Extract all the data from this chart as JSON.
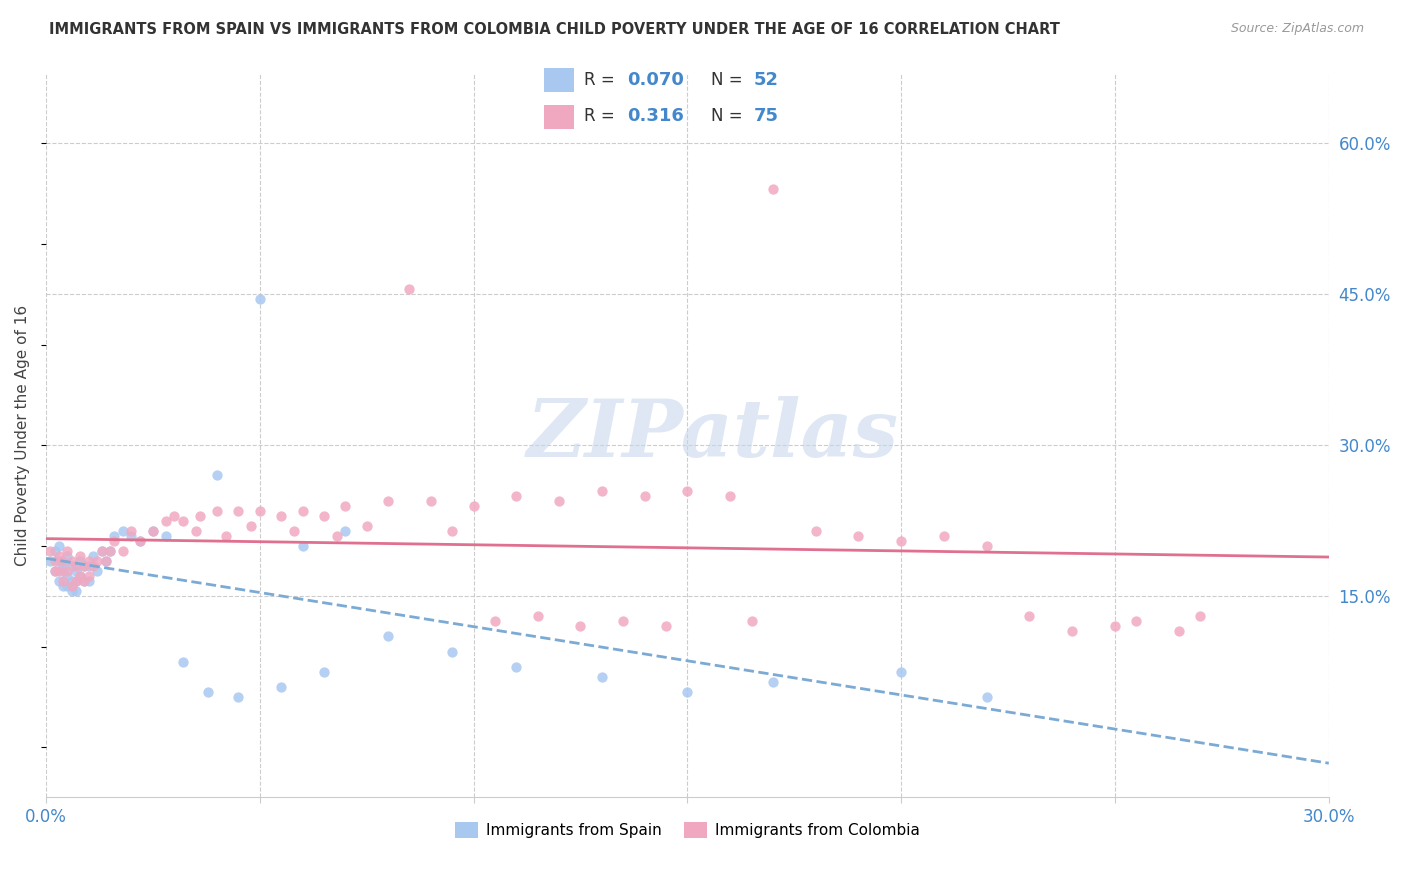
{
  "title": "IMMIGRANTS FROM SPAIN VS IMMIGRANTS FROM COLOMBIA CHILD POVERTY UNDER THE AGE OF 16 CORRELATION CHART",
  "source": "Source: ZipAtlas.com",
  "ylabel": "Child Poverty Under the Age of 16",
  "xlim": [
    0.0,
    0.3
  ],
  "ylim": [
    -0.05,
    0.67
  ],
  "xtick_positions": [
    0.0,
    0.05,
    0.1,
    0.15,
    0.2,
    0.25,
    0.3
  ],
  "xticklabels": [
    "0.0%",
    "",
    "",
    "",
    "",
    "",
    "30.0%"
  ],
  "ytick_vals": [
    0.15,
    0.3,
    0.45,
    0.6
  ],
  "yticklabels_right": [
    "15.0%",
    "30.0%",
    "45.0%",
    "60.0%"
  ],
  "legend_R_spain": "0.070",
  "legend_N_spain": "52",
  "legend_R_colombia": "0.316",
  "legend_N_colombia": "75",
  "color_spain": "#a8c8f0",
  "color_colombia": "#f0a8c0",
  "color_line_spain": "#7baad4",
  "color_line_colombia": "#e07090",
  "color_text_blue": "#4488cc",
  "watermark": "ZIPatlas",
  "background_color": "#ffffff",
  "grid_color": "#cccccc",
  "spain_x": [
    0.001,
    0.002,
    0.002,
    0.003,
    0.003,
    0.003,
    0.004,
    0.004,
    0.004,
    0.005,
    0.005,
    0.005,
    0.006,
    0.006,
    0.006,
    0.007,
    0.007,
    0.007,
    0.008,
    0.008,
    0.009,
    0.009,
    0.01,
    0.01,
    0.011,
    0.012,
    0.013,
    0.014,
    0.015,
    0.016,
    0.018,
    0.02,
    0.022,
    0.025,
    0.028,
    0.032,
    0.038,
    0.045,
    0.055,
    0.065,
    0.08,
    0.095,
    0.11,
    0.13,
    0.15,
    0.17,
    0.2,
    0.22,
    0.05,
    0.06,
    0.07,
    0.04
  ],
  "spain_y": [
    0.185,
    0.195,
    0.175,
    0.2,
    0.185,
    0.165,
    0.175,
    0.16,
    0.18,
    0.19,
    0.17,
    0.16,
    0.18,
    0.165,
    0.155,
    0.175,
    0.165,
    0.155,
    0.185,
    0.17,
    0.18,
    0.165,
    0.18,
    0.165,
    0.19,
    0.175,
    0.195,
    0.185,
    0.195,
    0.21,
    0.215,
    0.21,
    0.205,
    0.215,
    0.21,
    0.085,
    0.055,
    0.05,
    0.06,
    0.075,
    0.11,
    0.095,
    0.08,
    0.07,
    0.055,
    0.065,
    0.075,
    0.05,
    0.445,
    0.2,
    0.215,
    0.27
  ],
  "colombia_x": [
    0.001,
    0.002,
    0.002,
    0.003,
    0.003,
    0.004,
    0.004,
    0.005,
    0.005,
    0.006,
    0.006,
    0.007,
    0.007,
    0.008,
    0.008,
    0.009,
    0.009,
    0.01,
    0.01,
    0.011,
    0.012,
    0.013,
    0.014,
    0.015,
    0.016,
    0.018,
    0.02,
    0.022,
    0.025,
    0.028,
    0.032,
    0.036,
    0.04,
    0.045,
    0.05,
    0.055,
    0.06,
    0.065,
    0.07,
    0.08,
    0.09,
    0.1,
    0.11,
    0.12,
    0.13,
    0.14,
    0.15,
    0.16,
    0.17,
    0.18,
    0.19,
    0.2,
    0.21,
    0.22,
    0.23,
    0.24,
    0.25,
    0.255,
    0.265,
    0.27,
    0.03,
    0.035,
    0.042,
    0.048,
    0.058,
    0.068,
    0.075,
    0.085,
    0.095,
    0.105,
    0.115,
    0.125,
    0.135,
    0.145,
    0.165
  ],
  "colombia_y": [
    0.195,
    0.185,
    0.175,
    0.19,
    0.175,
    0.185,
    0.165,
    0.195,
    0.175,
    0.185,
    0.16,
    0.18,
    0.165,
    0.19,
    0.17,
    0.18,
    0.165,
    0.185,
    0.17,
    0.18,
    0.185,
    0.195,
    0.185,
    0.195,
    0.205,
    0.195,
    0.215,
    0.205,
    0.215,
    0.225,
    0.225,
    0.23,
    0.235,
    0.235,
    0.235,
    0.23,
    0.235,
    0.23,
    0.24,
    0.245,
    0.245,
    0.24,
    0.25,
    0.245,
    0.255,
    0.25,
    0.255,
    0.25,
    0.555,
    0.215,
    0.21,
    0.205,
    0.21,
    0.2,
    0.13,
    0.115,
    0.12,
    0.125,
    0.115,
    0.13,
    0.23,
    0.215,
    0.21,
    0.22,
    0.215,
    0.21,
    0.22,
    0.455,
    0.215,
    0.125,
    0.13,
    0.12,
    0.125,
    0.12,
    0.125
  ]
}
